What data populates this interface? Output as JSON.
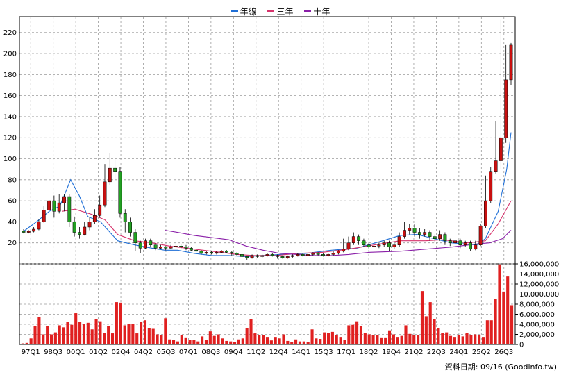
{
  "legend": {
    "items": [
      {
        "label": "年線",
        "color": "#1f6fd6"
      },
      {
        "label": "三年",
        "color": "#d6336c"
      },
      {
        "label": "十年",
        "color": "#8a1fa8"
      }
    ]
  },
  "footer": {
    "text": "資料日期: 09/16 (Goodinfo.tw)"
  },
  "colors": {
    "up_candle": "#c81010",
    "down_candle": "#22a022",
    "volume_bar": "#e02020",
    "grid": "#9a9a9a",
    "axis": "#000000"
  },
  "chart_data": [
    {
      "type": "candlestick",
      "title": "",
      "ylim": [
        0,
        235
      ],
      "y_ticks": [
        "20",
        "40",
        "60",
        "80",
        "100",
        "120",
        "140",
        "160",
        "180",
        "200",
        "220"
      ],
      "x_tick_labels": [
        "97Q1",
        "98Q3",
        "00Q1",
        "01Q2",
        "02Q4",
        "04Q2",
        "05Q3",
        "07Q1",
        "08Q3",
        "09Q4",
        "11Q2",
        "12Q4",
        "14Q1",
        "15Q3",
        "17Q1",
        "18Q2",
        "19Q4",
        "21Q2",
        "22Q3",
        "24Q1",
        "25Q2",
        "26Q3"
      ],
      "grid": true,
      "moving_averages": [
        {
          "name": "年線",
          "values": [
            [
              0,
              31
            ],
            [
              6,
              40
            ],
            [
              12,
              50
            ],
            [
              17,
              55
            ],
            [
              22,
              80
            ],
            [
              26,
              65
            ],
            [
              30,
              45
            ],
            [
              36,
              40
            ],
            [
              44,
              22
            ],
            [
              52,
              18
            ],
            [
              60,
              15
            ],
            [
              66,
              13
            ],
            [
              72,
              13
            ],
            [
              80,
              10
            ],
            [
              88,
              8
            ],
            [
              96,
              8
            ],
            [
              104,
              7
            ],
            [
              112,
              8
            ],
            [
              120,
              9
            ],
            [
              132,
              10
            ],
            [
              144,
              13
            ],
            [
              156,
              15
            ],
            [
              168,
              22
            ],
            [
              176,
              27
            ],
            [
              184,
              28
            ],
            [
              190,
              25
            ],
            [
              200,
              20
            ],
            [
              212,
              18
            ],
            [
              216,
              24
            ],
            [
              222,
              50
            ],
            [
              226,
              90
            ],
            [
              228,
              125
            ]
          ]
        },
        {
          "name": "三年",
          "values": [
            [
              18,
              50
            ],
            [
              24,
              52
            ],
            [
              32,
              47
            ],
            [
              38,
              42
            ],
            [
              44,
              28
            ],
            [
              52,
              22
            ],
            [
              60,
              20
            ],
            [
              68,
              17
            ],
            [
              76,
              15
            ],
            [
              84,
              13
            ],
            [
              92,
              11
            ],
            [
              100,
              9
            ],
            [
              108,
              8
            ],
            [
              118,
              8
            ],
            [
              128,
              10
            ],
            [
              140,
              11
            ],
            [
              152,
              14
            ],
            [
              164,
              18
            ],
            [
              176,
              22
            ],
            [
              188,
              22
            ],
            [
              196,
              23
            ],
            [
              208,
              20
            ],
            [
              216,
              22
            ],
            [
              222,
              38
            ],
            [
              228,
              60
            ]
          ]
        },
        {
          "name": "十年",
          "values": [
            [
              66,
              32
            ],
            [
              72,
              30
            ],
            [
              80,
              27
            ],
            [
              88,
              25
            ],
            [
              96,
              23
            ],
            [
              104,
              17
            ],
            [
              112,
              13
            ],
            [
              120,
              10
            ],
            [
              128,
              9
            ],
            [
              136,
              8
            ],
            [
              144,
              8
            ],
            [
              152,
              9
            ],
            [
              162,
              11
            ],
            [
              176,
              12
            ],
            [
              188,
              14
            ],
            [
              200,
              16
            ],
            [
              212,
              19
            ],
            [
              218,
              20
            ],
            [
              224,
              24
            ],
            [
              228,
              32
            ]
          ]
        }
      ],
      "candles": [
        [
          0,
          31,
          30,
          33,
          29
        ],
        [
          1,
          30,
          31,
          32,
          29
        ],
        [
          2,
          31,
          33,
          35,
          30
        ],
        [
          3,
          33,
          40,
          42,
          32
        ],
        [
          4,
          40,
          51,
          55,
          39
        ],
        [
          5,
          51,
          60,
          80,
          48
        ],
        [
          6,
          60,
          50,
          65,
          44
        ],
        [
          7,
          50,
          58,
          66,
          48
        ],
        [
          8,
          58,
          64,
          66,
          50
        ],
        [
          9,
          64,
          40,
          66,
          35
        ],
        [
          10,
          40,
          30,
          45,
          26
        ],
        [
          11,
          30,
          28,
          35,
          24
        ],
        [
          12,
          28,
          35,
          40,
          27
        ],
        [
          13,
          35,
          40,
          44,
          32
        ],
        [
          14,
          40,
          46,
          52,
          38
        ],
        [
          15,
          46,
          56,
          65,
          44
        ],
        [
          16,
          56,
          78,
          95,
          54
        ],
        [
          17,
          78,
          91,
          105,
          75
        ],
        [
          18,
          91,
          88,
          100,
          80
        ],
        [
          19,
          88,
          48,
          92,
          44
        ],
        [
          20,
          48,
          40,
          52,
          30
        ],
        [
          21,
          40,
          30,
          44,
          26
        ],
        [
          22,
          30,
          20,
          33,
          12
        ],
        [
          23,
          20,
          15,
          22,
          10
        ],
        [
          24,
          15,
          22,
          24,
          14
        ],
        [
          25,
          22,
          18,
          24,
          16
        ],
        [
          26,
          18,
          15,
          20,
          13
        ],
        [
          27,
          15,
          16,
          18,
          14
        ],
        [
          28,
          16,
          15,
          17,
          13
        ],
        [
          29,
          15,
          16,
          18,
          14
        ],
        [
          30,
          16,
          17,
          19,
          15
        ],
        [
          31,
          17,
          16,
          19,
          14
        ],
        [
          32,
          16,
          15,
          18,
          13
        ],
        [
          33,
          15,
          13,
          16,
          12
        ],
        [
          34,
          13,
          12,
          14,
          11
        ],
        [
          35,
          12,
          10,
          13,
          9
        ],
        [
          36,
          10,
          11,
          12,
          9
        ],
        [
          37,
          11,
          10,
          12,
          9
        ],
        [
          38,
          10,
          11,
          12,
          9
        ],
        [
          39,
          11,
          12,
          13,
          10
        ],
        [
          40,
          12,
          11,
          13,
          10
        ],
        [
          41,
          11,
          10,
          12,
          8
        ],
        [
          42,
          10,
          9,
          11,
          8
        ],
        [
          43,
          9,
          7,
          10,
          5
        ],
        [
          44,
          7,
          6,
          8,
          4
        ],
        [
          45,
          6,
          8,
          9,
          5
        ],
        [
          46,
          8,
          7,
          9,
          6
        ],
        [
          47,
          7,
          8,
          9,
          6
        ],
        [
          48,
          8,
          9,
          10,
          7
        ],
        [
          49,
          9,
          8,
          10,
          7
        ],
        [
          50,
          8,
          7,
          9,
          5
        ],
        [
          51,
          7,
          6,
          8,
          5
        ],
        [
          52,
          6,
          7,
          8,
          5
        ],
        [
          53,
          7,
          8,
          9,
          6
        ],
        [
          54,
          8,
          9,
          10,
          7
        ],
        [
          55,
          9,
          8,
          10,
          7
        ],
        [
          56,
          8,
          9,
          10,
          7
        ],
        [
          57,
          9,
          10,
          11,
          8
        ],
        [
          58,
          10,
          9,
          11,
          8
        ],
        [
          59,
          9,
          8,
          10,
          7
        ],
        [
          60,
          8,
          9,
          10,
          7
        ],
        [
          61,
          9,
          10,
          12,
          8
        ],
        [
          62,
          10,
          12,
          13,
          9
        ],
        [
          63,
          12,
          14,
          24,
          11
        ],
        [
          64,
          14,
          20,
          26,
          13
        ],
        [
          65,
          20,
          26,
          30,
          18
        ],
        [
          66,
          26,
          22,
          28,
          18
        ],
        [
          67,
          22,
          18,
          24,
          16
        ],
        [
          68,
          18,
          16,
          20,
          14
        ],
        [
          69,
          16,
          17,
          19,
          14
        ],
        [
          70,
          17,
          18,
          20,
          15
        ],
        [
          71,
          18,
          20,
          22,
          16
        ],
        [
          72,
          20,
          16,
          22,
          12
        ],
        [
          73,
          16,
          18,
          20,
          14
        ],
        [
          74,
          18,
          26,
          30,
          16
        ],
        [
          75,
          26,
          32,
          40,
          24
        ],
        [
          76,
          32,
          34,
          38,
          28
        ],
        [
          77,
          34,
          30,
          38,
          26
        ],
        [
          78,
          30,
          28,
          34,
          24
        ],
        [
          79,
          28,
          30,
          33,
          26
        ],
        [
          80,
          30,
          26,
          32,
          22
        ],
        [
          81,
          26,
          24,
          28,
          20
        ],
        [
          82,
          24,
          28,
          32,
          22
        ],
        [
          83,
          28,
          22,
          30,
          18
        ],
        [
          84,
          22,
          20,
          24,
          17
        ],
        [
          85,
          20,
          22,
          24,
          18
        ],
        [
          86,
          22,
          18,
          24,
          15
        ],
        [
          87,
          18,
          20,
          22,
          16
        ],
        [
          88,
          20,
          14,
          22,
          12
        ],
        [
          89,
          14,
          18,
          22,
          13
        ],
        [
          90,
          18,
          36,
          38,
          17
        ],
        [
          91,
          36,
          60,
          84,
          34
        ],
        [
          92,
          60,
          88,
          92,
          58
        ],
        [
          93,
          88,
          98,
          136,
          86
        ],
        [
          94,
          98,
          120,
          232,
          90
        ],
        [
          95,
          120,
          175,
          208,
          115
        ],
        [
          96,
          175,
          208,
          210,
          170
        ]
      ]
    },
    {
      "type": "bar",
      "title": "",
      "ylim": [
        0,
        16000000
      ],
      "y_ticks": [
        "0",
        "2,000,000",
        "4,000,000",
        "6,000,000",
        "8,000,000",
        "10,000,000",
        "12,000,000",
        "14,000,000",
        "16,000,000"
      ],
      "values": [
        200000,
        300000,
        1200000,
        3600000,
        5400000,
        2000000,
        3600000,
        2000000,
        2400000,
        3800000,
        3400000,
        4500000,
        3900000,
        6200000,
        4500000,
        4000000,
        4300000,
        3000000,
        5000000,
        4600000,
        2300000,
        3600000,
        2200000,
        8400000,
        8300000,
        3800000,
        4100000,
        4100000,
        2200000,
        4500000,
        4800000,
        3300000,
        3100000,
        2000000,
        1800000,
        5200000,
        1000000,
        900000,
        600000,
        1800000,
        1400000,
        900000,
        900000,
        600000,
        1600000,
        900000,
        2600000,
        1700000,
        2000000,
        1200000,
        700000,
        600000,
        500000,
        1000000,
        1200000,
        3300000,
        5100000,
        2200000,
        1800000,
        1800000,
        1500000,
        800000,
        1500000,
        1200000,
        2000000,
        700000,
        500000,
        1000000,
        600000,
        600000,
        500000,
        3000000,
        1200000,
        1100000,
        2400000,
        2300000,
        2500000,
        1900000,
        1500000,
        900000,
        3800000,
        3900000,
        4600000,
        3700000,
        2300000,
        2000000,
        1800000,
        1900000,
        1400000,
        1400000,
        2800000,
        2000000,
        1500000,
        1700000,
        3800000,
        2100000,
        1900000,
        1800000,
        10600000,
        5600000,
        8400000,
        5100000,
        3200000,
        2300000,
        2400000,
        1700000,
        1500000,
        1800000,
        1600000,
        2300000,
        1800000,
        2000000,
        1800000,
        1500000,
        4800000,
        4800000,
        9000000,
        15900000,
        10500000,
        13500000,
        7800000
      ]
    }
  ]
}
